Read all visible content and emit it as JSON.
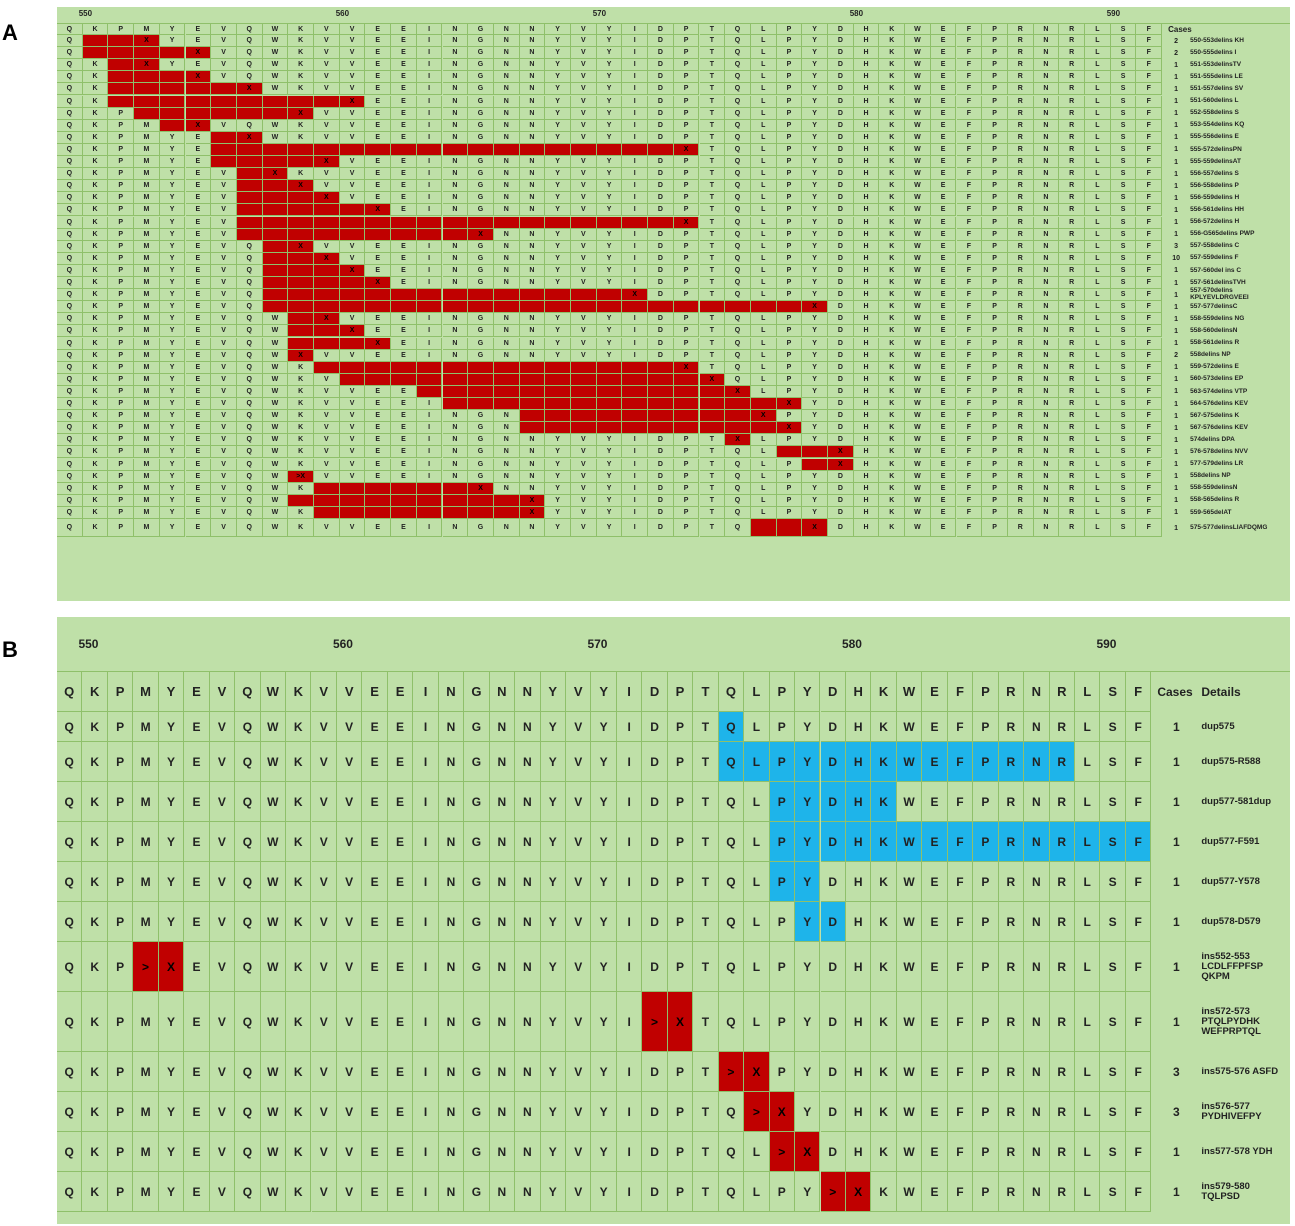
{
  "panel_a": {
    "label": "A",
    "positions": [
      "550",
      "560",
      "570",
      "580",
      "590"
    ],
    "cases_header": "Cases",
    "sequence": [
      "Q",
      "K",
      "P",
      "M",
      "Y",
      "E",
      "V",
      "Q",
      "W",
      "K",
      "V",
      "V",
      "E",
      "E",
      "I",
      "N",
      "G",
      "N",
      "N",
      "Y",
      "V",
      "Y",
      "I",
      "D",
      "P",
      "T",
      "Q",
      "L",
      "P",
      "Y",
      "D",
      "H",
      "K",
      "W",
      "E",
      "F",
      "P",
      "R",
      "N",
      "R",
      "L",
      "S",
      "F"
    ],
    "rows": [
      {
        "start": 1,
        "end": 3,
        "mark": "X",
        "cases": "2",
        "label": "550-553delins KH"
      },
      {
        "start": 1,
        "end": 5,
        "mark": "X",
        "cases": "2",
        "label": "550-555delins I"
      },
      {
        "start": 2,
        "end": 3,
        "mark": "X",
        "cases": "1",
        "label": "551-553delinsTV"
      },
      {
        "start": 2,
        "end": 5,
        "mark": "X",
        "cases": "1",
        "label": "551-555delins LE"
      },
      {
        "start": 2,
        "end": 7,
        "mark": "X",
        "cases": "1",
        "label": "551-557delins SV"
      },
      {
        "start": 2,
        "end": 11,
        "mark": "X",
        "cases": "1",
        "label": "551-560delins L"
      },
      {
        "start": 3,
        "end": 9,
        "mark": "X",
        "cases": "1",
        "label": "552-558delins S"
      },
      {
        "start": 4,
        "end": 5,
        "mark": "X",
        "cases": "1",
        "label": "553-554delins KQ"
      },
      {
        "start": 6,
        "end": 7,
        "mark": "X",
        "cases": "1",
        "label": "555-556delins E"
      },
      {
        "start": 6,
        "end": 24,
        "mark": "X",
        "cases": "1",
        "label": "555-572delinsPN"
      },
      {
        "start": 6,
        "end": 10,
        "mark": "X",
        "cases": "1",
        "label": "555-559delinsAT"
      },
      {
        "start": 7,
        "end": 8,
        "mark": "X",
        "cases": "1",
        "label": "556-557delins S"
      },
      {
        "start": 7,
        "end": 9,
        "mark": "X",
        "cases": "1",
        "label": "556-558delins P"
      },
      {
        "start": 7,
        "end": 10,
        "mark": "X",
        "cases": "1",
        "label": "556-559delins H"
      },
      {
        "start": 7,
        "end": 12,
        "mark": "X",
        "cases": "1",
        "label": "556-561delins HH"
      },
      {
        "start": 7,
        "end": 24,
        "mark": "X",
        "cases": "1",
        "label": "556-572delins H"
      },
      {
        "start": 7,
        "end": 16,
        "mark": "X",
        "cases": "1",
        "label": "556-G565delins PWP"
      },
      {
        "start": 8,
        "end": 9,
        "mark": "X",
        "cases": "3",
        "label": "557-558delins C"
      },
      {
        "start": 8,
        "end": 10,
        "mark": "X",
        "cases": "10",
        "label": "557-559delins F"
      },
      {
        "start": 8,
        "end": 11,
        "mark": "X",
        "cases": "1",
        "label": "557-560del ins C"
      },
      {
        "start": 8,
        "end": 12,
        "mark": "X",
        "cases": "1",
        "label": "557-561delinsTVH"
      },
      {
        "start": 8,
        "end": 22,
        "mark": "X",
        "cases": "1",
        "label": "557-570delins KPLYEVLDRGVEEI"
      },
      {
        "start": 8,
        "end": 29,
        "mark": "X",
        "cases": "1",
        "label": "557-577delinsC"
      },
      {
        "start": 9,
        "end": 10,
        "mark": "X",
        "cases": "1",
        "label": "558-559delins NG"
      },
      {
        "start": 9,
        "end": 11,
        "mark": "X",
        "cases": "1",
        "label": "558-560delinsN"
      },
      {
        "start": 9,
        "end": 12,
        "mark": "X",
        "cases": "1",
        "label": "558-561delins R"
      },
      {
        "start": 9,
        "end": 9,
        "mark": "X",
        "cases": "2",
        "label": "558delins NP"
      },
      {
        "start": 10,
        "end": 24,
        "mark": "X",
        "cases": "1",
        "label": "559-572delins E"
      },
      {
        "start": 11,
        "end": 25,
        "mark": "X",
        "cases": "1",
        "label": "560-573delins EP"
      },
      {
        "start": 14,
        "end": 26,
        "mark": "X",
        "cases": "1",
        "label": "563-574delins VTP"
      },
      {
        "start": 15,
        "end": 28,
        "mark": "X",
        "cases": "1",
        "label": "564-576delins KEV"
      },
      {
        "start": 18,
        "end": 27,
        "mark": "X",
        "cases": "1",
        "label": "567-575delins K"
      },
      {
        "start": 18,
        "end": 28,
        "mark": "X",
        "cases": "1",
        "label": "567-576delins KEV"
      },
      {
        "start": 26,
        "end": 26,
        "mark": "X",
        "cases": "1",
        "label": "574delins DPA"
      },
      {
        "start": 28,
        "end": 30,
        "mark": "X",
        "cases": "1",
        "label": "576-578delins NVV"
      },
      {
        "start": 29,
        "end": 30,
        "mark": "X",
        "cases": "1",
        "label": "577-579delins LR"
      },
      {
        "start": 9,
        "end": 9,
        "mark": ">X",
        "cases": "1",
        "label": "558delins NP"
      },
      {
        "start": 10,
        "end": 16,
        "mark": "X",
        "cases": "1",
        "label": "558-559delinsN"
      },
      {
        "start": 9,
        "end": 18,
        "mark": "X",
        "cases": "1",
        "label": "558-565delins R"
      },
      {
        "start": 10,
        "end": 18,
        "mark": "X",
        "cases": "1",
        "label": "559-565delAT"
      },
      {
        "start": 27,
        "end": 29,
        "mark": "X",
        "cases": "1",
        "label": "575-577delinsLIAFDQMG"
      }
    ]
  },
  "panel_b": {
    "label": "B",
    "positions": [
      "550",
      "560",
      "570",
      "580",
      "590"
    ],
    "cases_header": "Cases",
    "details_header": "Details",
    "sequence": [
      "Q",
      "K",
      "P",
      "M",
      "Y",
      "E",
      "V",
      "Q",
      "W",
      "K",
      "V",
      "V",
      "E",
      "E",
      "I",
      "N",
      "G",
      "N",
      "N",
      "Y",
      "V",
      "Y",
      "I",
      "D",
      "P",
      "T",
      "Q",
      "L",
      "P",
      "Y",
      "D",
      "H",
      "K",
      "W",
      "E",
      "F",
      "P",
      "R",
      "N",
      "R",
      "L",
      "S",
      "F"
    ],
    "rows": [
      {
        "type": "dup",
        "start": 26,
        "end": 26,
        "cases": "1",
        "label": "dup575"
      },
      {
        "type": "dup",
        "start": 26,
        "end": 39,
        "cases": "1",
        "label": "dup575-R588"
      },
      {
        "type": "dup",
        "start": 28,
        "end": 32,
        "cases": "1",
        "label": "dup577-581dup"
      },
      {
        "type": "dup",
        "start": 28,
        "end": 42,
        "cases": "1",
        "label": "dup577-F591"
      },
      {
        "type": "dup",
        "start": 28,
        "end": 29,
        "cases": "1",
        "label": "dup577-Y578"
      },
      {
        "type": "dup",
        "start": 29,
        "end": 30,
        "cases": "1",
        "label": "dup578-D579"
      },
      {
        "type": "ins",
        "start": 3,
        "end": 4,
        "cases": "1",
        "label": "ins552-553 LCDLFFPFSP QKPM"
      },
      {
        "type": "ins",
        "start": 23,
        "end": 24,
        "cases": "1",
        "label": "ins572-573 PTQLPYDHK WEFPRPTQL"
      },
      {
        "type": "ins",
        "start": 26,
        "end": 27,
        "cases": "3",
        "label": "ins575-576 ASFD"
      },
      {
        "type": "ins",
        "start": 27,
        "end": 28,
        "cases": "3",
        "label": "ins576-577 PYDHIVEFPY"
      },
      {
        "type": "ins",
        "start": 28,
        "end": 29,
        "cases": "1",
        "label": "ins577-578 YDH"
      },
      {
        "type": "ins",
        "start": 30,
        "end": 31,
        "cases": "1",
        "label": "ins579-580 TQLPSD"
      }
    ]
  }
}
